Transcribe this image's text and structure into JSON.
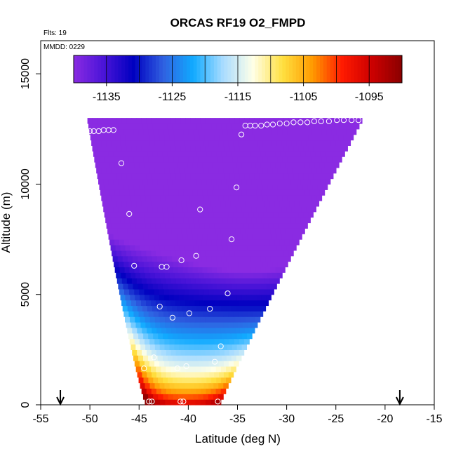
{
  "chart_data": {
    "type": "heatmap",
    "title": "ORCAS RF19 O2_FMPD",
    "flight_label": "Flts: 19",
    "date_label": "MMDD: 0229",
    "xlabel": "Latitude (deg N)",
    "ylabel": "Altitude (m)",
    "xlim": [
      -55,
      -15
    ],
    "ylim": [
      0,
      16500
    ],
    "x_ticks": [
      -55,
      -50,
      -45,
      -40,
      -35,
      -30,
      -25,
      -20,
      -15
    ],
    "y_ticks": [
      0,
      5000,
      10000,
      15000
    ],
    "colorbar": {
      "min": -1140,
      "max": -1090,
      "tick_values": [
        -1135,
        -1125,
        -1115,
        -1105,
        -1095
      ],
      "tick_labels": [
        "-1135",
        "-1125",
        "-1115",
        "-1105",
        "-1095"
      ],
      "colors": [
        "#8a2be2",
        "#4a14d8",
        "#0000c0",
        "#3060e0",
        "#10aaff",
        "#a8dcff",
        "#ffffe8",
        "#ffe040",
        "#ff9a00",
        "#ff1a00",
        "#cc0000",
        "#8a0000"
      ]
    },
    "field": {
      "latitude_bounds": {
        "bottom": [
          -44.3,
          -36.8
        ],
        "top": [
          -50.3,
          -22.2
        ]
      },
      "altitude_range": [
        0,
        13000
      ]
    },
    "markers": [
      {
        "label": "arrow-left",
        "latitude": -53
      },
      {
        "label": "arrow-right",
        "latitude": -18.5
      }
    ],
    "points": [
      {
        "lat": -50.0,
        "alt": 12400
      },
      {
        "lat": -49.6,
        "alt": 12400
      },
      {
        "lat": -49.1,
        "alt": 12400
      },
      {
        "lat": -48.6,
        "alt": 12450
      },
      {
        "lat": -48.1,
        "alt": 12450
      },
      {
        "lat": -47.6,
        "alt": 12450
      },
      {
        "lat": -46.8,
        "alt": 10950
      },
      {
        "lat": -46.0,
        "alt": 8650
      },
      {
        "lat": -45.5,
        "alt": 6300
      },
      {
        "lat": -42.7,
        "alt": 6250
      },
      {
        "lat": -42.2,
        "alt": 6250
      },
      {
        "lat": -40.7,
        "alt": 6550
      },
      {
        "lat": -39.2,
        "alt": 6750
      },
      {
        "lat": -38.8,
        "alt": 8850
      },
      {
        "lat": -35.6,
        "alt": 7500
      },
      {
        "lat": -35.1,
        "alt": 9850
      },
      {
        "lat": -34.6,
        "alt": 12250
      },
      {
        "lat": -34.2,
        "alt": 12650
      },
      {
        "lat": -33.7,
        "alt": 12650
      },
      {
        "lat": -33.2,
        "alt": 12650
      },
      {
        "lat": -32.6,
        "alt": 12650
      },
      {
        "lat": -32.0,
        "alt": 12700
      },
      {
        "lat": -31.4,
        "alt": 12700
      },
      {
        "lat": -30.7,
        "alt": 12750
      },
      {
        "lat": -30.0,
        "alt": 12750
      },
      {
        "lat": -29.3,
        "alt": 12800
      },
      {
        "lat": -28.6,
        "alt": 12800
      },
      {
        "lat": -27.9,
        "alt": 12800
      },
      {
        "lat": -27.2,
        "alt": 12850
      },
      {
        "lat": -26.5,
        "alt": 12850
      },
      {
        "lat": -25.7,
        "alt": 12850
      },
      {
        "lat": -24.9,
        "alt": 12900
      },
      {
        "lat": -24.2,
        "alt": 12900
      },
      {
        "lat": -23.4,
        "alt": 12900
      },
      {
        "lat": -22.7,
        "alt": 12900
      },
      {
        "lat": -42.9,
        "alt": 4450
      },
      {
        "lat": -41.6,
        "alt": 3950
      },
      {
        "lat": -39.9,
        "alt": 4150
      },
      {
        "lat": -37.8,
        "alt": 4350
      },
      {
        "lat": -36.0,
        "alt": 5050
      },
      {
        "lat": -36.7,
        "alt": 2650
      },
      {
        "lat": -37.3,
        "alt": 1950
      },
      {
        "lat": -43.5,
        "alt": 2150
      },
      {
        "lat": -44.5,
        "alt": 1650
      },
      {
        "lat": -41.1,
        "alt": 1650
      },
      {
        "lat": -40.2,
        "alt": 1750
      },
      {
        "lat": -44.0,
        "alt": 150
      },
      {
        "lat": -43.7,
        "alt": 150
      },
      {
        "lat": -40.8,
        "alt": 150
      },
      {
        "lat": -40.5,
        "alt": 150
      },
      {
        "lat": -37.0,
        "alt": 150
      }
    ]
  }
}
